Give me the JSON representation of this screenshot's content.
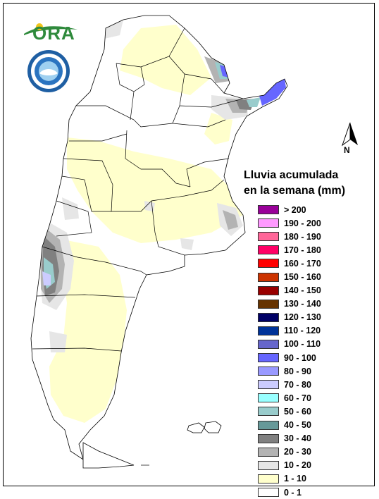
{
  "logo": {
    "text": "ORA",
    "seal_icon": "smn-seal-icon"
  },
  "north_arrow": {
    "label": "N"
  },
  "legend": {
    "title_line1": "Lluvia acumulada",
    "title_line2": "en la semana (mm)",
    "items": [
      {
        "label": "> 200",
        "color": "#990099"
      },
      {
        "label": "190 - 200",
        "color": "#ff99ff"
      },
      {
        "label": "180 - 190",
        "color": "#ff6699"
      },
      {
        "label": "170 - 180",
        "color": "#ff0066"
      },
      {
        "label": "160 - 170",
        "color": "#ff0000"
      },
      {
        "label": "150 - 160",
        "color": "#cc3300"
      },
      {
        "label": "140 - 150",
        "color": "#990000"
      },
      {
        "label": "130 - 140",
        "color": "#663300"
      },
      {
        "label": "120 - 130",
        "color": "#000066"
      },
      {
        "label": "110 - 120",
        "color": "#003399"
      },
      {
        "label": "100 - 110",
        "color": "#6666cc"
      },
      {
        "label": "90 - 100",
        "color": "#6666ff"
      },
      {
        "label": "80 - 90",
        "color": "#9999ff"
      },
      {
        "label": "70 - 80",
        "color": "#ccccff"
      },
      {
        "label": "60 - 70",
        "color": "#99ffff"
      },
      {
        "label": "50 - 60",
        "color": "#99cccc"
      },
      {
        "label": "40 - 50",
        "color": "#669999"
      },
      {
        "label": "30 - 40",
        "color": "#808080"
      },
      {
        "label": "20 - 30",
        "color": "#b3b3b3"
      },
      {
        "label": "10 - 20",
        "color": "#e6e6e6"
      },
      {
        "label": "1 - 10",
        "color": "#ffffcc"
      },
      {
        "label": "0 - 1",
        "color": "#ffffff"
      }
    ]
  }
}
